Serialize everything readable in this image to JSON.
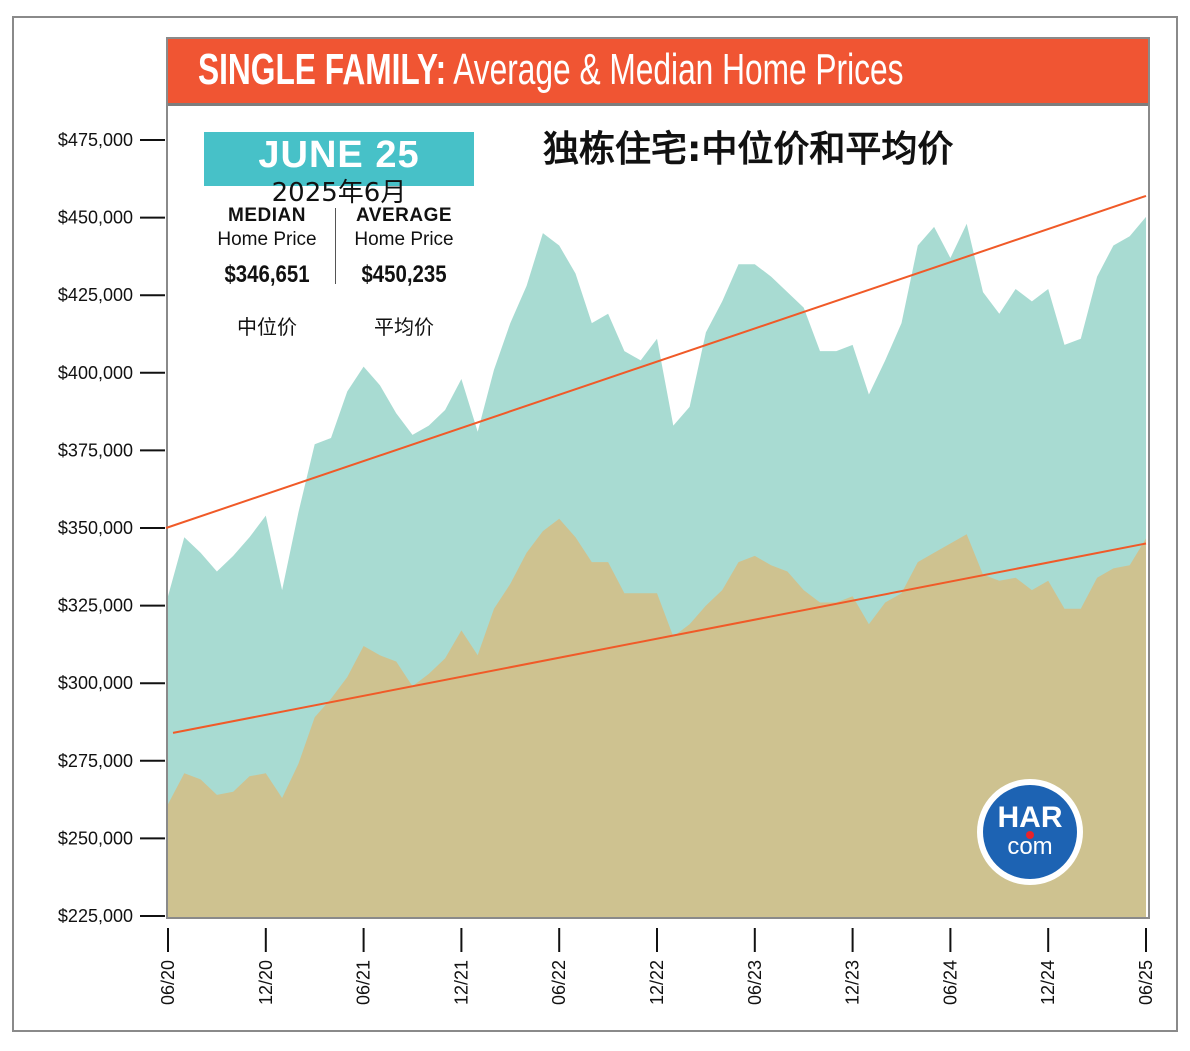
{
  "header": {
    "title_bold": "SINGLE FAMILY:",
    "title_rest": " Average & Median Home Prices",
    "subtitle_cn": "独栋住宅:中位价和平均价"
  },
  "summary": {
    "period": "JUNE 25",
    "period_cn": "2025年6月",
    "median": {
      "kind": "MEDIAN",
      "sub": "Home Price",
      "value": "$346,651",
      "cn": "中位价"
    },
    "average": {
      "kind": "AVERAGE",
      "sub": "Home Price",
      "value": "$450,235",
      "cn": "平均价"
    }
  },
  "logo": {
    "top": "HAR",
    "bottom": "com"
  },
  "colors": {
    "title_bar": "#f05533",
    "average_area": "#a8dbd2",
    "median_area": "#cec290",
    "trend_line": "#f05a28",
    "badge": "#47c1c8",
    "logo_blue": "#1d63b3",
    "logo_dot": "#e8232a"
  },
  "chart_data": {
    "type": "area",
    "title": "SINGLE FAMILY: Average & Median Home Prices",
    "xlabel": "",
    "ylabel": "",
    "ylim": [
      225000,
      475000
    ],
    "yticks": [
      475000,
      450000,
      425000,
      400000,
      375000,
      350000,
      325000,
      300000,
      275000,
      250000,
      225000
    ],
    "ytick_labels": [
      "$475,000",
      "$450,000",
      "$425,000",
      "$400,000",
      "$375,000",
      "$350,000",
      "$325,000",
      "$300,000",
      "$275,000",
      "$250,000",
      "$225,000"
    ],
    "xtick_labels": [
      "06/20",
      "12/20",
      "06/21",
      "12/21",
      "06/22",
      "12/22",
      "06/23",
      "12/23",
      "06/24",
      "12/24",
      "06/25"
    ],
    "x_start": "06/20",
    "x_end": "06/25",
    "x_months": 61,
    "grid": false,
    "series": [
      {
        "name": "Average Home Price",
        "values": [
          328000,
          347000,
          342000,
          336000,
          341000,
          347000,
          354000,
          330000,
          355000,
          377000,
          379000,
          394000,
          402000,
          396000,
          387000,
          380000,
          383000,
          388000,
          398000,
          381000,
          401000,
          416000,
          428000,
          445000,
          441000,
          432000,
          416000,
          419000,
          407000,
          404000,
          411000,
          383000,
          389000,
          413000,
          423000,
          435000,
          435000,
          431000,
          426000,
          421000,
          407000,
          407000,
          409000,
          393000,
          404000,
          416000,
          441000,
          447000,
          437000,
          448000,
          426000,
          419000,
          427000,
          423000,
          427000,
          409000,
          411000,
          431000,
          441000,
          444000,
          450235
        ]
      },
      {
        "name": "Median Home Price",
        "values": [
          261000,
          271000,
          269000,
          264000,
          265000,
          270000,
          271000,
          263000,
          274000,
          289000,
          295000,
          302000,
          312000,
          309000,
          307000,
          299000,
          303000,
          308000,
          317000,
          309000,
          324000,
          332000,
          342000,
          349000,
          353000,
          347000,
          339000,
          339000,
          329000,
          329000,
          329000,
          315000,
          319000,
          325000,
          330000,
          339000,
          341000,
          338000,
          336000,
          330000,
          326000,
          326000,
          328000,
          319000,
          326000,
          329000,
          339000,
          342000,
          345000,
          348000,
          335000,
          333000,
          334000,
          330000,
          333000,
          324000,
          324000,
          334000,
          337000,
          338000,
          346651
        ]
      }
    ],
    "trend_lines": [
      {
        "name": "Average trend",
        "start": 350000,
        "end": 457000
      },
      {
        "name": "Median trend",
        "start": 284000,
        "end": 345000
      }
    ]
  }
}
